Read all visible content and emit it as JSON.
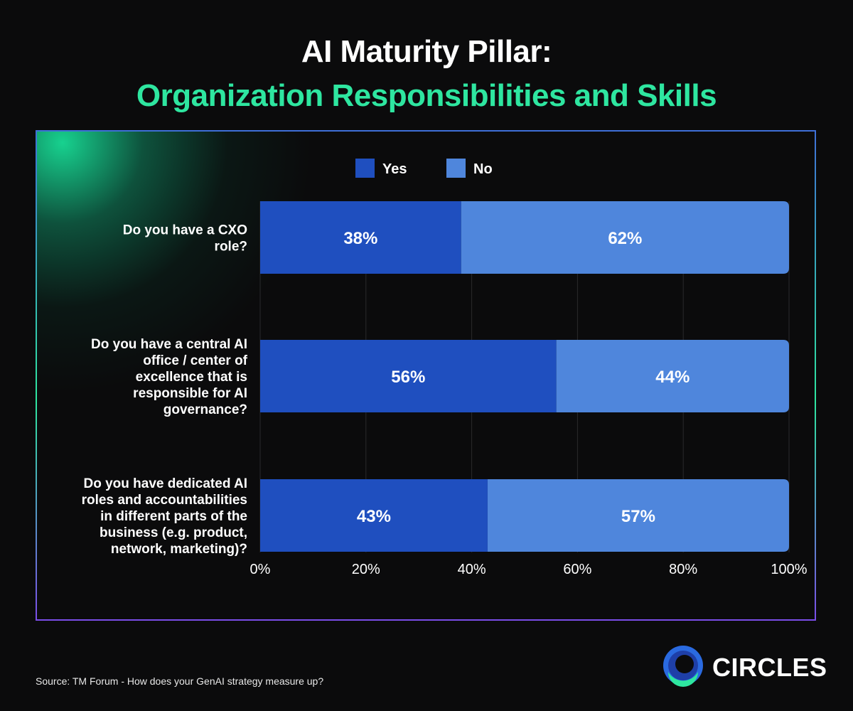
{
  "title_line1": "AI Maturity Pillar:",
  "title_line2": "Organization Responsibilities and Skills",
  "source": "Source: TM Forum - How does your GenAI strategy measure up?",
  "brand": "CIRCLES",
  "colors": {
    "yes": "#1f4fbf",
    "no": "#4f86dc",
    "accent": "#2ee6a0"
  },
  "chart_data": {
    "type": "bar",
    "orientation": "horizontal",
    "stacked": true,
    "categories": [
      "Do you have a CXO role?",
      "Do you have a central AI office / center of excellence that is responsible for AI governance?",
      "Do you have dedicated AI roles and accountabilities in different parts of the business (e.g. product, network, marketing)?"
    ],
    "category_lines": [
      [
        "Do you have a CXO",
        "role?"
      ],
      [
        "Do you have a central AI",
        "office / center of",
        "excellence that is",
        "responsible for AI",
        "governance?"
      ],
      [
        "Do you have dedicated AI",
        "roles and accountabilities",
        "in different parts of the",
        "business (e.g. product,",
        "network, marketing)?"
      ]
    ],
    "series": [
      {
        "name": "Yes",
        "values": [
          38,
          56,
          43
        ],
        "labels": [
          "38%",
          "56%",
          "43%"
        ]
      },
      {
        "name": "No",
        "values": [
          62,
          44,
          57
        ],
        "labels": [
          "62%",
          "44%",
          "57%"
        ]
      }
    ],
    "xlim": [
      0,
      100
    ],
    "xticks": [
      0,
      20,
      40,
      60,
      80,
      100
    ],
    "xtick_labels": [
      "0%",
      "20%",
      "40%",
      "60%",
      "80%",
      "100%"
    ],
    "grid": true,
    "legend": "top-center"
  }
}
